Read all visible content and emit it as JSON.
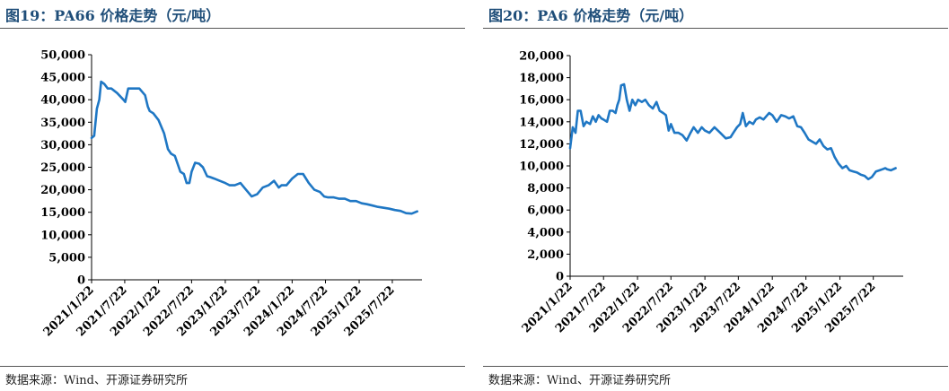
{
  "charts": [
    {
      "title": "图19：PA66 价格走势（元/吨）",
      "source": "数据来源：Wind、开源证券研究所"
    },
    {
      "title": "图20：PA6 价格走势（元/吨）",
      "source": "数据来源：Wind、开源证券研究所"
    }
  ],
  "chart_data": [
    {
      "type": "line",
      "title": "图19：PA66 价格走势（元/吨）",
      "line_color": "#1f77c4",
      "ylim": [
        0,
        50000
      ],
      "yticks": [
        "0",
        "5,000",
        "10,000",
        "15,000",
        "20,000",
        "25,000",
        "30,000",
        "35,000",
        "40,000",
        "45,000",
        "50,000"
      ],
      "xlim": [
        "2021-01-22",
        "2025-12-31"
      ],
      "xticks": [
        "2021/1/22",
        "2021/7/22",
        "2022/1/22",
        "2022/7/22",
        "2023/1/22",
        "2023/7/22",
        "2024/1/22",
        "2024/7/22",
        "2025/1/22",
        "2025/7/22"
      ],
      "series": [
        {
          "x": [
            "2021-01-22",
            "2021-02-05",
            "2021-02-20",
            "2021-03-05",
            "2021-03-15",
            "2021-04-01",
            "2021-04-20",
            "2021-05-10",
            "2021-06-10",
            "2021-07-15",
            "2021-07-25",
            "2021-08-10",
            "2021-09-10",
            "2021-10-10",
            "2021-11-10",
            "2021-11-25",
            "2021-12-05",
            "2021-12-25",
            "2022-01-22",
            "2022-02-22",
            "2022-03-15",
            "2022-04-01",
            "2022-04-22",
            "2022-05-22",
            "2022-06-10",
            "2022-06-25",
            "2022-07-10",
            "2022-07-22",
            "2022-08-10",
            "2022-09-01",
            "2022-09-22",
            "2022-10-15",
            "2022-11-01",
            "2022-11-22",
            "2022-12-22",
            "2023-01-22",
            "2023-02-15",
            "2023-03-15",
            "2023-04-15",
            "2023-05-15",
            "2023-06-15",
            "2023-07-15",
            "2023-08-15",
            "2023-09-15",
            "2023-10-15",
            "2023-11-10",
            "2023-11-25",
            "2023-12-22",
            "2024-01-22",
            "2024-02-22",
            "2024-03-22",
            "2024-04-22",
            "2024-05-22",
            "2024-06-22",
            "2024-07-15",
            "2024-08-05",
            "2024-09-05",
            "2024-10-05",
            "2024-11-05",
            "2024-12-05",
            "2025-01-05",
            "2025-02-05",
            "2025-03-05",
            "2025-04-05",
            "2025-05-05",
            "2025-06-05",
            "2025-07-05",
            "2025-08-05",
            "2025-09-05",
            "2025-10-05",
            "2025-11-05",
            "2025-12-05"
          ],
          "y": [
            31500,
            32000,
            38000,
            40000,
            44000,
            43500,
            42500,
            42500,
            41500,
            40000,
            39500,
            42500,
            42500,
            42500,
            41000,
            38500,
            37500,
            37000,
            35500,
            32500,
            29000,
            28000,
            27500,
            24000,
            23500,
            21500,
            21500,
            24000,
            26000,
            25800,
            25000,
            23000,
            22800,
            22500,
            22000,
            21500,
            21000,
            21000,
            21500,
            20000,
            18500,
            19000,
            20500,
            21000,
            22000,
            20500,
            21000,
            21000,
            22500,
            23500,
            23500,
            21500,
            20000,
            19500,
            18500,
            18300,
            18300,
            18000,
            18000,
            17500,
            17500,
            17000,
            16800,
            16500,
            16200,
            16000,
            15800,
            15500,
            15300,
            14800,
            14700,
            15200
          ]
        }
      ]
    },
    {
      "type": "line",
      "title": "图20：PA6 价格走势（元/吨）",
      "line_color": "#1f77c4",
      "ylim": [
        0,
        20000
      ],
      "yticks": [
        "0",
        "2,000",
        "4,000",
        "6,000",
        "8,000",
        "10,000",
        "12,000",
        "14,000",
        "16,000",
        "18,000",
        "20,000"
      ],
      "xlim": [
        "2021-01-22",
        "2025-12-31"
      ],
      "xticks": [
        "2021/1/22",
        "2021/7/22",
        "2022/1/22",
        "2022/7/22",
        "2023/1/22",
        "2023/7/22",
        "2024/1/22",
        "2024/7/22",
        "2025/1/22",
        "2025/7/22"
      ],
      "series": [
        {
          "x": [
            "2021-01-22",
            "2021-02-05",
            "2021-02-20",
            "2021-03-05",
            "2021-03-20",
            "2021-04-05",
            "2021-04-20",
            "2021-05-10",
            "2021-05-25",
            "2021-06-10",
            "2021-06-25",
            "2021-07-10",
            "2021-07-22",
            "2021-08-10",
            "2021-08-25",
            "2021-09-10",
            "2021-09-25",
            "2021-10-05",
            "2021-10-15",
            "2021-10-25",
            "2021-11-10",
            "2021-11-25",
            "2021-12-10",
            "2021-12-25",
            "2022-01-10",
            "2022-01-25",
            "2022-02-15",
            "2022-03-05",
            "2022-03-25",
            "2022-04-15",
            "2022-05-05",
            "2022-05-22",
            "2022-06-10",
            "2022-06-25",
            "2022-07-10",
            "2022-07-22",
            "2022-08-10",
            "2022-09-01",
            "2022-09-22",
            "2022-10-15",
            "2022-11-05",
            "2022-11-22",
            "2022-12-15",
            "2023-01-05",
            "2023-01-22",
            "2023-02-15",
            "2023-03-15",
            "2023-04-15",
            "2023-05-15",
            "2023-06-10",
            "2023-06-25",
            "2023-07-15",
            "2023-08-01",
            "2023-08-15",
            "2023-09-01",
            "2023-09-20",
            "2023-10-10",
            "2023-10-25",
            "2023-11-15",
            "2023-12-05",
            "2024-01-05",
            "2024-01-22",
            "2024-02-15",
            "2024-03-10",
            "2024-04-01",
            "2024-04-22",
            "2024-05-15",
            "2024-06-05",
            "2024-06-25",
            "2024-07-15",
            "2024-08-05",
            "2024-08-25",
            "2024-09-15",
            "2024-10-05",
            "2024-10-25",
            "2024-11-15",
            "2024-12-05",
            "2024-12-25",
            "2025-01-15",
            "2025-02-05",
            "2025-02-25",
            "2025-03-15",
            "2025-04-05",
            "2025-04-25",
            "2025-05-15",
            "2025-06-05",
            "2025-06-25",
            "2025-07-15",
            "2025-08-05",
            "2025-08-25",
            "2025-09-10",
            "2025-09-25",
            "2025-10-05",
            "2025-10-25",
            "2025-11-20"
          ],
          "y": [
            11600,
            13500,
            13000,
            15000,
            15000,
            13600,
            14000,
            13800,
            14500,
            14000,
            14600,
            14300,
            14200,
            14000,
            15000,
            15000,
            14800,
            15500,
            16000,
            17300,
            17400,
            16000,
            15000,
            16000,
            15500,
            16000,
            15800,
            16000,
            15500,
            15200,
            15800,
            15000,
            14800,
            14600,
            13200,
            13800,
            13000,
            13000,
            12800,
            12300,
            13000,
            13500,
            13000,
            13500,
            13200,
            13000,
            13500,
            13000,
            12500,
            12600,
            13000,
            13500,
            13800,
            14800,
            13600,
            14000,
            13800,
            14200,
            14400,
            14200,
            14800,
            14600,
            14000,
            14600,
            14500,
            14300,
            14500,
            13600,
            13500,
            13000,
            12400,
            12200,
            12000,
            12400,
            11800,
            11500,
            11600,
            10800,
            10200,
            9800,
            10000,
            9600,
            9500,
            9400,
            9200,
            9100,
            8800,
            9000,
            9500,
            9600,
            9700,
            9800,
            9700,
            9600,
            9800
          ]
        }
      ]
    }
  ]
}
